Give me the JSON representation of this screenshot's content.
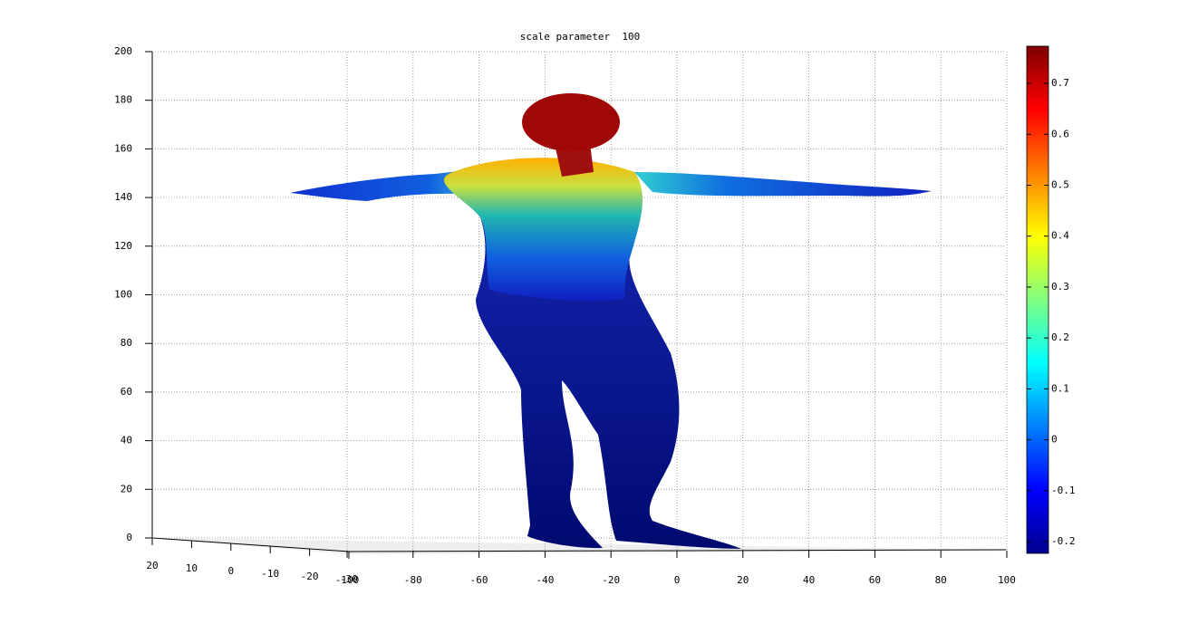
{
  "chart_data": {
    "type": "surface3d",
    "title": "scale parameter  100",
    "xlim": [
      -100,
      100
    ],
    "xticks": [
      -100,
      -80,
      -60,
      -40,
      -20,
      0,
      20,
      40,
      60,
      80,
      100
    ],
    "ylim": [
      -30,
      20
    ],
    "yticks": [
      20,
      10,
      0,
      -10,
      -20,
      -30
    ],
    "zlim": [
      0,
      200
    ],
    "zticks": [
      0,
      20,
      40,
      60,
      80,
      100,
      120,
      140,
      160,
      180,
      200
    ],
    "clim": [
      -0.223,
      0.773
    ],
    "cticks": [
      -0.2,
      -0.1,
      0,
      0.1,
      0.2,
      0.3,
      0.4,
      0.5,
      0.6,
      0.7
    ],
    "colormap": "jet",
    "grid": true
  }
}
